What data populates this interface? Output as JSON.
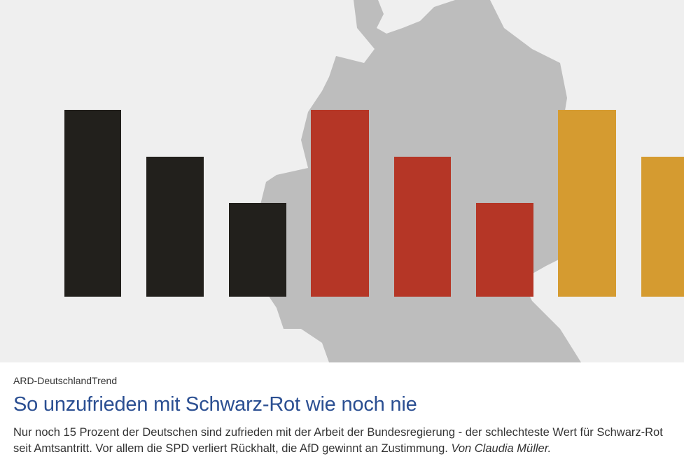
{
  "teaser": {
    "image": {
      "description_icon": "germany-map-with-flag-bars",
      "colors": {
        "black": "#22201c",
        "red": "#b53626",
        "gold": "#d59b30",
        "map": "#bdbdbd",
        "background": "#efefef"
      }
    },
    "topline": "ARD-DeutschlandTrend",
    "headline": "So unzufrieden mit Schwarz-Rot wie noch nie",
    "shorttext": "Nur noch 15 Prozent der Deutschen sind zufrieden mit der Arbeit der Bundesregierung - der schlechteste Wert für Schwarz-Rot seit Amtsantritt. Vor allem die SPD verliert Rückhalt, die AfD gewinnt an Zustimmung.",
    "author": "Von Claudia Müller.",
    "title_color": "#2b4f92"
  }
}
